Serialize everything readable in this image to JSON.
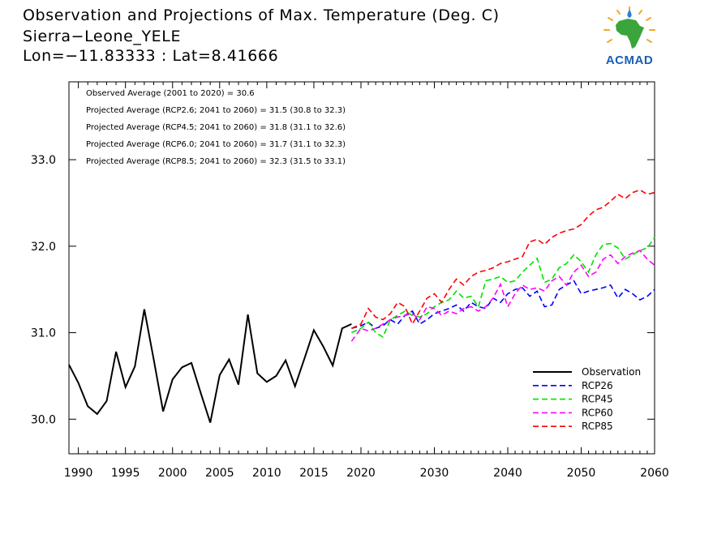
{
  "header": {
    "title_line1": "Observation and Projections of Max. Temperature (Deg. C)",
    "title_line2": "Sierra−Leone_YELE",
    "title_line3": "Lon=−11.83333 : Lat=8.41666"
  },
  "logo": {
    "text": "ACMAD",
    "icon": "africa-map-logo-icon"
  },
  "annotations": [
    "Observed Average (2001 to 2020) = 30.6",
    "Projected Average (RCP2.6; 2041 to 2060) = 31.5 (30.8 to 32.3)",
    "Projected Average (RCP4.5; 2041 to 2060) = 31.8 (31.1 to 32.6)",
    "Projected Average (RCP6.0; 2041 to 2060) = 31.7 (31.1 to 32.3)",
    "Projected Average (RCP8.5; 2041 to 2060) = 32.3 (31.5 to 33.1)"
  ],
  "chart_data": {
    "type": "line",
    "xlim": [
      1989,
      2060
    ],
    "ylim": [
      29.6,
      33.9
    ],
    "x_ticks": [
      1990,
      1995,
      2000,
      2005,
      2010,
      2015,
      2020,
      2030,
      2040,
      2050,
      2060
    ],
    "y_ticks": [
      30.0,
      31.0,
      32.0,
      33.0
    ],
    "y_tick_labels": [
      "30.0",
      "31.0",
      "32.0",
      "33.0"
    ],
    "grid": false,
    "legend_position": "bottom-right",
    "series": [
      {
        "name": "Observation",
        "color": "#000000",
        "dashed": false,
        "x": [
          1989,
          1990,
          1991,
          1992,
          1993,
          1994,
          1995,
          1996,
          1997,
          1998,
          1999,
          2000,
          2001,
          2002,
          2003,
          2004,
          2005,
          2006,
          2007,
          2008,
          2009,
          2010,
          2011,
          2012,
          2013,
          2014,
          2015,
          2016,
          2017,
          2018,
          2019
        ],
        "y": [
          30.63,
          30.42,
          30.15,
          30.06,
          30.21,
          30.78,
          30.37,
          30.61,
          31.27,
          30.69,
          30.09,
          30.46,
          30.6,
          30.65,
          30.3,
          29.96,
          30.51,
          30.69,
          30.4,
          31.21,
          30.53,
          30.43,
          30.5,
          30.68,
          30.38,
          30.7,
          31.03,
          30.84,
          30.62,
          31.05,
          31.1
        ]
      },
      {
        "name": "RCP26",
        "color": "#0000ff",
        "dashed": true,
        "x": [
          2019,
          2020,
          2021,
          2022,
          2023,
          2024,
          2025,
          2026,
          2027,
          2028,
          2029,
          2030,
          2031,
          2032,
          2033,
          2034,
          2035,
          2036,
          2037,
          2038,
          2039,
          2040,
          2041,
          2042,
          2043,
          2044,
          2045,
          2046,
          2047,
          2048,
          2049,
          2050,
          2051,
          2052,
          2053,
          2054,
          2055,
          2056,
          2057,
          2058,
          2059,
          2060
        ],
        "y": [
          31.05,
          31.08,
          31.12,
          31.05,
          31.08,
          31.15,
          31.1,
          31.2,
          31.25,
          31.1,
          31.15,
          31.22,
          31.25,
          31.28,
          31.32,
          31.25,
          31.35,
          31.3,
          31.28,
          31.4,
          31.35,
          31.45,
          31.5,
          31.52,
          31.42,
          31.48,
          31.3,
          31.32,
          31.5,
          31.55,
          31.6,
          31.45,
          31.48,
          31.5,
          31.52,
          31.55,
          31.4,
          31.5,
          31.45,
          31.38,
          31.42,
          31.5
        ]
      },
      {
        "name": "RCP45",
        "color": "#00e000",
        "dashed": true,
        "x": [
          2019,
          2020,
          2021,
          2022,
          2023,
          2024,
          2025,
          2026,
          2027,
          2028,
          2029,
          2030,
          2031,
          2032,
          2033,
          2034,
          2035,
          2036,
          2037,
          2038,
          2039,
          2040,
          2041,
          2042,
          2043,
          2044,
          2045,
          2046,
          2047,
          2048,
          2049,
          2050,
          2051,
          2052,
          2053,
          2054,
          2055,
          2056,
          2057,
          2058,
          2059,
          2060
        ],
        "y": [
          31.0,
          31.05,
          31.12,
          31.0,
          30.95,
          31.15,
          31.2,
          31.25,
          31.2,
          31.18,
          31.22,
          31.3,
          31.35,
          31.38,
          31.48,
          31.4,
          31.42,
          31.3,
          31.6,
          31.62,
          31.65,
          31.58,
          31.6,
          31.7,
          31.78,
          31.86,
          31.58,
          31.62,
          31.75,
          31.8,
          31.9,
          31.82,
          31.7,
          31.9,
          32.02,
          32.03,
          31.98,
          31.85,
          31.9,
          31.95,
          31.98,
          32.1
        ]
      },
      {
        "name": "RCP60",
        "color": "#ff00ff",
        "dashed": true,
        "x": [
          2019,
          2020,
          2021,
          2022,
          2023,
          2024,
          2025,
          2026,
          2027,
          2028,
          2029,
          2030,
          2031,
          2032,
          2033,
          2034,
          2035,
          2036,
          2037,
          2038,
          2039,
          2040,
          2041,
          2042,
          2043,
          2044,
          2045,
          2046,
          2047,
          2048,
          2049,
          2050,
          2051,
          2052,
          2053,
          2054,
          2055,
          2056,
          2057,
          2058,
          2059,
          2060
        ],
        "y": [
          30.9,
          31.05,
          31.02,
          31.05,
          31.1,
          31.15,
          31.18,
          31.2,
          31.22,
          31.15,
          31.3,
          31.28,
          31.2,
          31.25,
          31.22,
          31.28,
          31.3,
          31.25,
          31.3,
          31.4,
          31.56,
          31.3,
          31.45,
          31.55,
          31.5,
          31.52,
          31.48,
          31.6,
          31.65,
          31.55,
          31.7,
          31.78,
          31.65,
          31.7,
          31.85,
          31.9,
          31.8,
          31.88,
          31.92,
          31.95,
          31.85,
          31.78
        ]
      },
      {
        "name": "RCP85",
        "color": "#ff0000",
        "dashed": true,
        "x": [
          2019,
          2020,
          2021,
          2022,
          2023,
          2024,
          2025,
          2026,
          2027,
          2028,
          2029,
          2030,
          2031,
          2032,
          2033,
          2034,
          2035,
          2036,
          2037,
          2038,
          2039,
          2040,
          2041,
          2042,
          2043,
          2044,
          2045,
          2046,
          2047,
          2048,
          2049,
          2050,
          2051,
          2052,
          2053,
          2054,
          2055,
          2056,
          2057,
          2058,
          2059,
          2060
        ],
        "y": [
          31.05,
          31.1,
          31.28,
          31.18,
          31.15,
          31.22,
          31.35,
          31.3,
          31.1,
          31.25,
          31.4,
          31.45,
          31.35,
          31.5,
          31.62,
          31.55,
          31.65,
          31.7,
          31.72,
          31.75,
          31.8,
          31.82,
          31.85,
          31.88,
          32.05,
          32.08,
          32.02,
          32.1,
          32.15,
          32.18,
          32.2,
          32.25,
          32.35,
          32.42,
          32.45,
          32.52,
          32.6,
          32.55,
          32.62,
          32.65,
          32.6,
          32.62
        ]
      }
    ]
  }
}
